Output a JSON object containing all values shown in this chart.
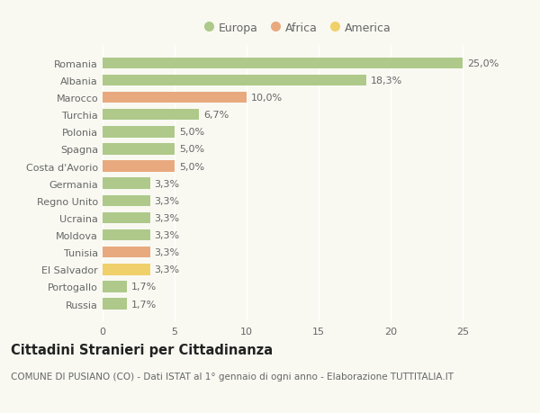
{
  "categories": [
    "Russia",
    "Portogallo",
    "El Salvador",
    "Tunisia",
    "Moldova",
    "Ucraina",
    "Regno Unito",
    "Germania",
    "Costa d'Avorio",
    "Spagna",
    "Polonia",
    "Turchia",
    "Marocco",
    "Albania",
    "Romania"
  ],
  "values": [
    1.7,
    1.7,
    3.3,
    3.3,
    3.3,
    3.3,
    3.3,
    3.3,
    5.0,
    5.0,
    5.0,
    6.7,
    10.0,
    18.3,
    25.0
  ],
  "labels": [
    "1,7%",
    "1,7%",
    "3,3%",
    "3,3%",
    "3,3%",
    "3,3%",
    "3,3%",
    "3,3%",
    "5,0%",
    "5,0%",
    "5,0%",
    "6,7%",
    "10,0%",
    "18,3%",
    "25,0%"
  ],
  "continents": [
    "Europa",
    "Europa",
    "America",
    "Africa",
    "Europa",
    "Europa",
    "Europa",
    "Europa",
    "Africa",
    "Europa",
    "Europa",
    "Europa",
    "Africa",
    "Europa",
    "Europa"
  ],
  "colors": {
    "Europa": "#aec98a",
    "Africa": "#e8a97e",
    "America": "#f0d06a"
  },
  "legend_labels": [
    "Europa",
    "Africa",
    "America"
  ],
  "legend_colors": [
    "#aec98a",
    "#e8a97e",
    "#f0d06a"
  ],
  "title": "Cittadini Stranieri per Cittadinanza",
  "subtitle": "COMUNE DI PUSIANO (CO) - Dati ISTAT al 1° gennaio di ogni anno - Elaborazione TUTTITALIA.IT",
  "xlim": [
    0,
    27
  ],
  "xticks": [
    0,
    5,
    10,
    15,
    20,
    25
  ],
  "background_color": "#f9f9f2",
  "bar_height": 0.65,
  "label_fontsize": 8,
  "tick_fontsize": 8,
  "title_fontsize": 10.5,
  "subtitle_fontsize": 7.5
}
